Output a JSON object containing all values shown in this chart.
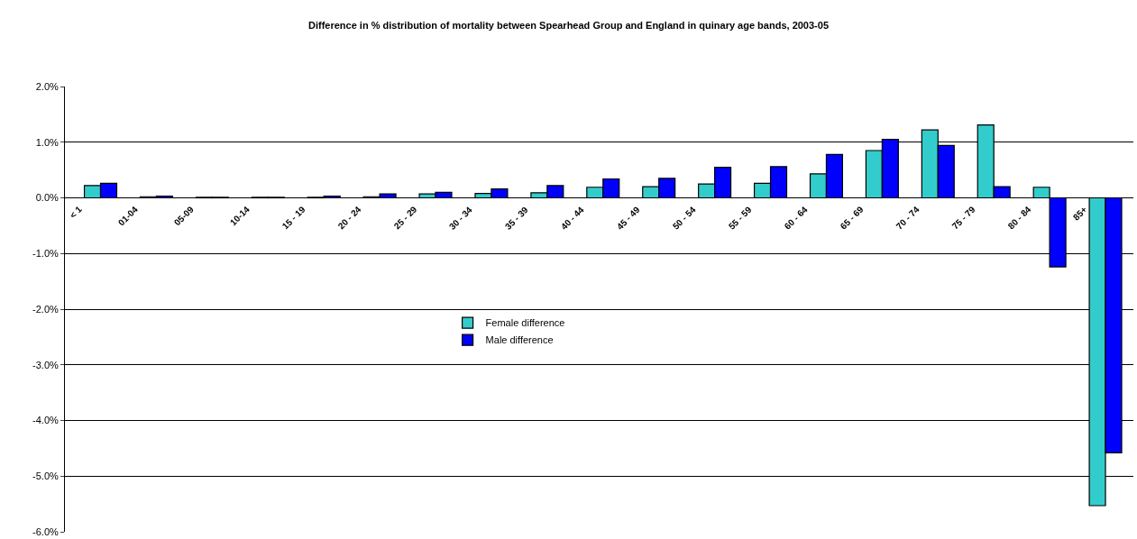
{
  "chart_data": {
    "type": "bar",
    "title": "Difference in % distribution of mortality between Spearhead Group and England in quinary age bands, 2003-05",
    "categories": [
      "< 1",
      "01-04",
      "05-09",
      "10-14",
      "15 - 19",
      "20 - 24",
      "25 - 29",
      "30 - 34",
      "35 - 39",
      "40 - 44",
      "45 - 49",
      "50 - 54",
      "55 - 59",
      "60 - 64",
      "65 - 69",
      "70 - 74",
      "75 - 79",
      "80 - 84",
      "85+"
    ],
    "series": [
      {
        "name": "Female difference",
        "color": "#33cccc",
        "values": [
          0.22,
          0.02,
          0.01,
          0.01,
          0.01,
          0.02,
          0.07,
          0.08,
          0.09,
          0.19,
          0.2,
          0.25,
          0.26,
          0.43,
          0.85,
          1.22,
          1.31,
          0.19,
          -5.53
        ]
      },
      {
        "name": "Male difference",
        "color": "#0000ff",
        "values": [
          0.26,
          0.03,
          0.01,
          0.01,
          0.03,
          0.07,
          0.1,
          0.16,
          0.22,
          0.34,
          0.35,
          0.55,
          0.56,
          0.78,
          1.05,
          0.94,
          0.2,
          -1.24,
          -4.58
        ]
      }
    ],
    "ylim": [
      -6,
      2
    ],
    "yticks": [
      {
        "value": -6,
        "label": "-6.0%"
      },
      {
        "value": -5,
        "label": "-5.0%"
      },
      {
        "value": -4,
        "label": "-4.0%"
      },
      {
        "value": -3,
        "label": "-3.0%"
      },
      {
        "value": -2,
        "label": "-2.0%"
      },
      {
        "value": -1,
        "label": "-1.0%"
      },
      {
        "value": 0,
        "label": "0.0%"
      },
      {
        "value": 1,
        "label": "1.0%"
      },
      {
        "value": 2,
        "label": "2.0%"
      }
    ],
    "grid": "y",
    "legend": "center"
  }
}
